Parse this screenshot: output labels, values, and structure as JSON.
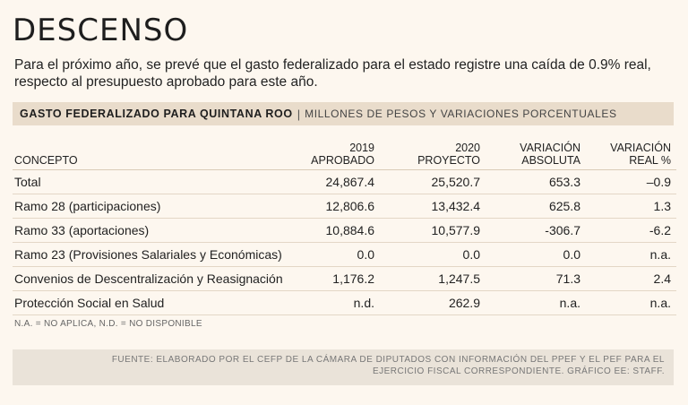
{
  "header": {
    "title": "DESCENSO",
    "subtitle": "Para el próximo año, se prevé que el gasto federalizado para el estado registre una caída de 0.9% real, respecto al presupuesto aprobado para este año."
  },
  "band": {
    "main": "GASTO FEDERALIZADO PARA QUINTANA ROO",
    "separator": "|",
    "sub": "MILLONES DE PESOS Y VARIACIONES PORCENTUALES"
  },
  "chart_data": {
    "type": "table",
    "columns": [
      {
        "line1": "",
        "line2": "Concepto"
      },
      {
        "line1": "2019",
        "line2": "Aprobado"
      },
      {
        "line1": "2020",
        "line2": "Proyecto"
      },
      {
        "line1": "Variación",
        "line2": "absoluta"
      },
      {
        "line1": "Variación",
        "line2": "real %"
      }
    ],
    "rows": [
      [
        "Total",
        "24,867.4",
        "25,520.7",
        "653.3",
        "–0.9"
      ],
      [
        "Ramo 28 (participaciones)",
        "12,806.6",
        "13,432.4",
        "625.8",
        "1.3"
      ],
      [
        "Ramo 33 (aportaciones)",
        "10,884.6",
        "10,577.9",
        "-306.7",
        "-6.2"
      ],
      [
        "Ramo 23 (Provisiones Salariales y Económicas)",
        "0.0",
        "0.0",
        "0.0",
        "n.a."
      ],
      [
        "Convenios de Descentralización y Reasignación",
        "1,176.2",
        "1,247.5",
        "71.3",
        "2.4"
      ],
      [
        "Protección Social en Salud",
        "n.d.",
        "262.9",
        "n.a.",
        "n.a."
      ]
    ]
  },
  "footer": {
    "note": "N.A. = NO APLICA, N.D. = NO DISPONIBLE",
    "source_line1": "FUENTE: ELABORADO POR EL CEFP DE LA CÁMARA DE DIPUTADOS CON INFORMACIÓN DEL PPEF Y EL PEF PARA EL",
    "source_line2": "EJERCICIO FISCAL CORRESPONDIENTE. GRÁFICO EE: STAFF."
  }
}
